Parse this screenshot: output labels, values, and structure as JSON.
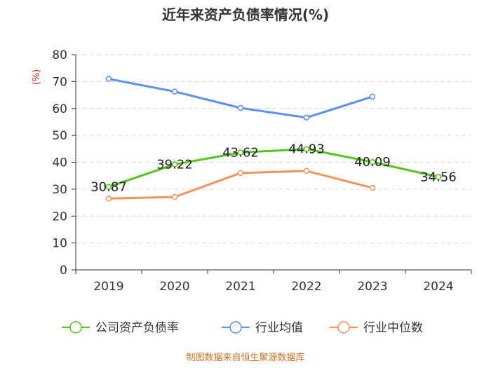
{
  "chart_data": {
    "type": "line",
    "title": "近年来资产负债率情况(%)",
    "ylabel": "(%)",
    "xlabel": "",
    "ylim": [
      0,
      80
    ],
    "yticks": [
      0,
      10,
      20,
      30,
      40,
      50,
      60,
      70,
      80
    ],
    "categories": [
      "2019",
      "2020",
      "2021",
      "2022",
      "2023",
      "2024"
    ],
    "series": [
      {
        "name": "公司资产负债率",
        "color": "#52c41a",
        "values": [
          30.87,
          39.22,
          43.62,
          44.93,
          40.09,
          34.56
        ],
        "labels": [
          "30.87",
          "39.22",
          "43.62",
          "44.93",
          "40.09",
          "34.56"
        ]
      },
      {
        "name": "行业均值",
        "color": "#5b8ff9",
        "values": [
          71.0,
          66.3,
          60.2,
          56.6,
          64.4,
          null
        ]
      },
      {
        "name": "行业中位数",
        "color": "#f4925a",
        "values": [
          26.5,
          27.1,
          36.0,
          36.8,
          30.5,
          null
        ]
      }
    ],
    "legend_position": "bottom",
    "grid": "horizontal-dashed",
    "source": "制图数据来自恒生聚源数据库"
  }
}
